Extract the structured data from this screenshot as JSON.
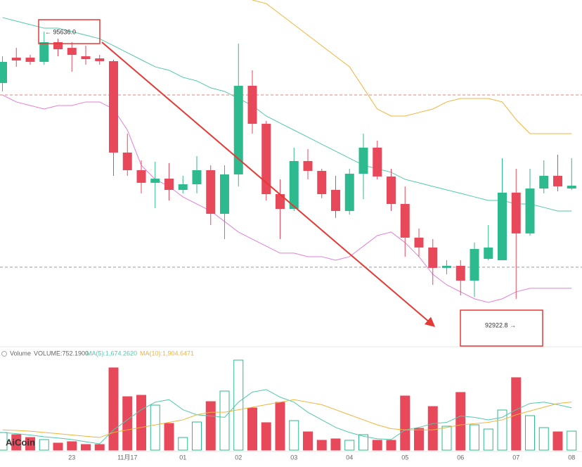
{
  "chart_data": {
    "type": "candlestick",
    "categories": [
      null,
      null,
      null,
      null,
      null,
      "23",
      null,
      null,
      null,
      "11月17",
      null,
      null,
      null,
      "01",
      null,
      null,
      null,
      "02",
      null,
      null,
      null,
      "03",
      null,
      null,
      null,
      "04",
      null,
      null,
      null,
      "05",
      null,
      null,
      null,
      "06",
      null,
      null,
      null,
      "07",
      null,
      null,
      null,
      "08"
    ],
    "open": [
      95114,
      95372,
      95372,
      95329,
      95529,
      95471,
      95386,
      95364,
      95336,
      94408,
      94229,
      94101,
      94143,
      94029,
      94086,
      94229,
      93786,
      94186,
      95086,
      94700,
      93986,
      93836,
      94322,
      94222,
      94029,
      93815,
      94193,
      94458,
      94165,
      93886,
      93544,
      93444,
      93237,
      93258,
      93108,
      93329,
      93315,
      94001,
      93587,
      94043,
      94172,
      94043
    ],
    "high": [
      95386,
      95471,
      95400,
      95636,
      95564,
      95529,
      95493,
      95400,
      95350,
      94600,
      94329,
      94315,
      94301,
      94172,
      94372,
      94279,
      94279,
      95514,
      95243,
      94729,
      94136,
      94458,
      94443,
      94243,
      94172,
      94243,
      94600,
      94529,
      94243,
      94065,
      93637,
      93529,
      93315,
      93315,
      93494,
      93672,
      94351,
      94243,
      94243,
      94329,
      94386,
      94351
    ],
    "low": [
      95029,
      95279,
      95300,
      95300,
      95386,
      95229,
      95300,
      95300,
      94172,
      94172,
      93994,
      93844,
      93922,
      93994,
      93994,
      93672,
      93529,
      94065,
      94600,
      93922,
      93529,
      93815,
      94136,
      93944,
      93744,
      93779,
      93936,
      94136,
      93815,
      93351,
      93351,
      93065,
      93172,
      92958,
      92940,
      93315,
      93315,
      92922.8,
      93565,
      93994,
      94015,
      94029
    ],
    "close": [
      95329,
      95343,
      95329,
      95529,
      95457,
      95400,
      95357,
      95336,
      94408,
      94229,
      94101,
      94143,
      94029,
      94086,
      94229,
      93786,
      94186,
      95086,
      94700,
      93986,
      93836,
      94322,
      94222,
      93986,
      93815,
      94193,
      94458,
      94165,
      93886,
      93544,
      93444,
      93237,
      93258,
      93108,
      93429,
      93444,
      94001,
      93587,
      94043,
      94172,
      94065,
      94072
    ],
    "ylim": [
      92458,
      95957
    ],
    "up_color": "#2dba8e",
    "down_color": "#e8495a",
    "overlays": [
      {
        "color": "#52c9ad",
        "values": [
          95779,
          95743,
          95707,
          95671,
          95671,
          95636,
          95600,
          95564,
          95493,
          95422,
          95350,
          95279,
          95243,
          95172,
          95136,
          95065,
          95029,
          94957,
          94886,
          94779,
          94707,
          94636,
          94565,
          94493,
          94422,
          94351,
          94279,
          94243,
          94208,
          94136,
          94101,
          94065,
          94029,
          93994,
          93958,
          93922,
          93922,
          93886,
          93886,
          93851,
          93815,
          93815
        ]
      },
      {
        "color": "#f0b43c",
        "values": [
          null,
          null,
          null,
          null,
          null,
          null,
          null,
          null,
          null,
          null,
          null,
          null,
          null,
          null,
          null,
          null,
          null,
          null,
          95957,
          95921,
          95814,
          95707,
          95600,
          95493,
          95386,
          95279,
          95065,
          94850,
          94779,
          94779,
          94815,
          94850,
          94922,
          94957,
          94957,
          94957,
          94922,
          94743,
          94600,
          94600,
          94600,
          94600
        ]
      },
      {
        "color": "#e47fd8",
        "values": [
          94993,
          94922,
          94886,
          94850,
          94886,
          94886,
          94922,
          94922,
          94850,
          94636,
          94279,
          94136,
          94065,
          93958,
          93886,
          93815,
          93708,
          93601,
          93529,
          93458,
          93387,
          93387,
          93351,
          93351,
          93315,
          93351,
          93458,
          93565,
          93601,
          93494,
          93351,
          93172,
          93065,
          92994,
          92923,
          92887,
          92923,
          92994,
          93030,
          93030,
          93030,
          93030
        ]
      }
    ],
    "reference_lines": [
      {
        "value": 94993,
        "color": "#e08080"
      },
      {
        "value": 93244,
        "color": "#9a9a9a"
      }
    ],
    "annotations": {
      "high": "← 95636.0",
      "low": "92922.8 →"
    },
    "volume": {
      "values": [
        697,
        613,
        501,
        418,
        279,
        334,
        223,
        223,
        3260,
        2117,
        2173,
        1783,
        1059,
        501,
        1114,
        1922,
        2340,
        3566,
        1672,
        1087,
        1894,
        1170,
        724,
        390,
        446,
        390,
        613,
        390,
        390,
        2145,
        864,
        1727,
        947,
        2285,
        1003,
        836,
        1588,
        2870,
        1365,
        892,
        724,
        752.19
      ],
      "ylim": [
        0,
        3622
      ],
      "ma5": {
        "color": "#52c9ad",
        "values": [
          700,
          650,
          600,
          530,
          480,
          420,
          330,
          250,
          800,
          1200,
          1600,
          1900,
          2000,
          1600,
          1400,
          1350,
          1300,
          1900,
          2300,
          2400,
          2100,
          1900,
          1500,
          1200,
          900,
          700,
          550,
          450,
          420,
          800,
          900,
          1050,
          1100,
          1350,
          1300,
          1200,
          1300,
          1600,
          1850,
          1900,
          1800,
          1674.262
        ]
      },
      "ma10": {
        "color": "#f0b43c",
        "values": [
          800,
          780,
          750,
          700,
          650,
          600,
          550,
          500,
          700,
          800,
          900,
          1000,
          1100,
          1200,
          1400,
          1500,
          1500,
          1600,
          1700,
          1800,
          1900,
          2000,
          1900,
          1800,
          1600,
          1400,
          1200,
          1000,
          850,
          800,
          800,
          800,
          900,
          1000,
          1050,
          1100,
          1200,
          1400,
          1550,
          1700,
          1850,
          1904.6471
        ]
      },
      "labels": {
        "name": "Volume",
        "volume": "VOLUME:752.1900",
        "ma5": "MA(5):1,674.2620",
        "ma10": "MA(10):1,904.6471"
      }
    },
    "watermark": "AiCoin"
  }
}
